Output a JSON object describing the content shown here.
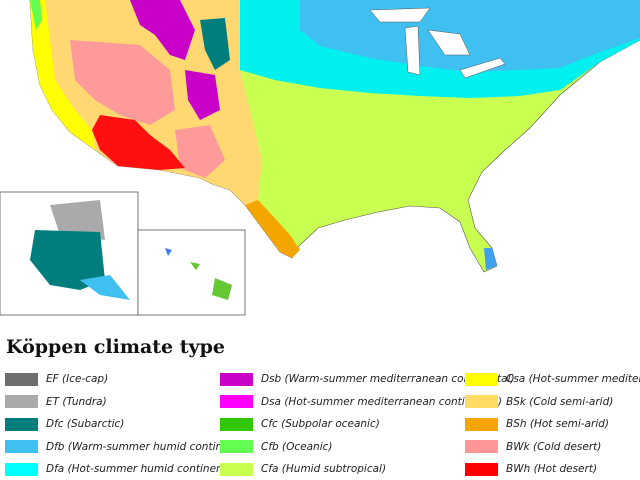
{
  "legend": {
    "title": "Köppen climate type",
    "columns": [
      [
        {
          "label": "EF (Ice-cap)",
          "color": "#6e6e6e"
        },
        {
          "label": "ET (Tundra)",
          "color": "#aaaaaa"
        },
        {
          "label": "Dfc (Subarctic)",
          "color": "#007d7d"
        },
        {
          "label": "Dfb (Warm-summer humid continental)",
          "color": "#3fc0f0"
        },
        {
          "label": "Dfa (Hot-summer humid continental)",
          "color": "#00ffff"
        }
      ],
      [
        {
          "label": "Dsb (Warm-summer mediterranean continental)",
          "color": "#c800c8"
        },
        {
          "label": "Dsa (Hot-summer mediterranean continental)",
          "color": "#ff00ff"
        },
        {
          "label": "Cfc (Subpolar oceanic)",
          "color": "#32c800"
        },
        {
          "label": "Cfb (Oceanic)",
          "color": "#64ff50"
        },
        {
          "label": "Cfa (Humid subtropical)",
          "color": "#c8ff50"
        }
      ],
      [
        {
          "label": "Csa (Hot-summer mediterranean)",
          "color": "#ffff00"
        },
        {
          "label": "BSk (Cold semi-arid)",
          "color": "#ffdc64"
        },
        {
          "label": "BSh (Hot semi-arid)",
          "color": "#f5a500"
        },
        {
          "label": "BWk (Cold desert)",
          "color": "#ff9696"
        },
        {
          "label": "BWh (Hot desert)",
          "color": "#ff0000"
        }
      ]
    ]
  }
}
